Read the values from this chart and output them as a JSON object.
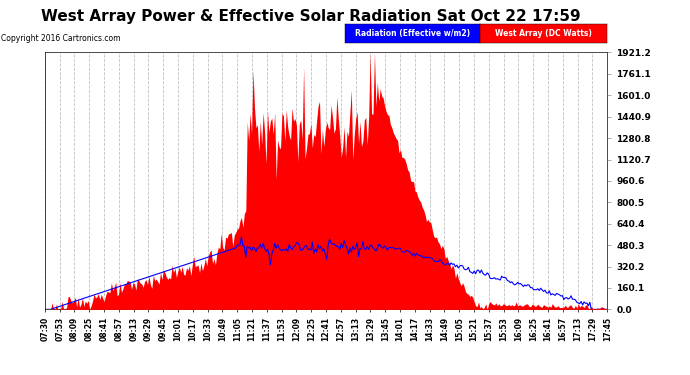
{
  "title": "West Array Power & Effective Solar Radiation Sat Oct 22 17:59",
  "copyright": "Copyright 2016 Cartronics.com",
  "legend_items": [
    "Radiation (Effective w/m2)",
    "West Array (DC Watts)"
  ],
  "legend_colors": [
    "#0000ff",
    "#ff0000"
  ],
  "yticks": [
    0.0,
    160.1,
    320.2,
    480.3,
    640.4,
    800.5,
    960.6,
    1120.7,
    1280.8,
    1440.9,
    1601.0,
    1761.1,
    1921.2
  ],
  "ymax": 1921.2,
  "ymin": 0.0,
  "background_color": "#ffffff",
  "plot_bg_color": "#ffffff",
  "grid_color": "#b0b0b0",
  "bar_color": "#ff0000",
  "line_color": "#0000ff",
  "title_fontsize": 11,
  "xtick_labels": [
    "07:30",
    "07:53",
    "08:09",
    "08:25",
    "08:41",
    "08:57",
    "09:13",
    "09:29",
    "09:45",
    "10:01",
    "10:17",
    "10:33",
    "10:49",
    "11:05",
    "11:21",
    "11:37",
    "11:53",
    "12:09",
    "12:25",
    "12:41",
    "12:57",
    "13:13",
    "13:29",
    "13:45",
    "14:01",
    "14:17",
    "14:33",
    "14:49",
    "15:05",
    "15:21",
    "15:37",
    "15:53",
    "16:09",
    "16:25",
    "16:41",
    "16:57",
    "17:13",
    "17:29",
    "17:45"
  ]
}
